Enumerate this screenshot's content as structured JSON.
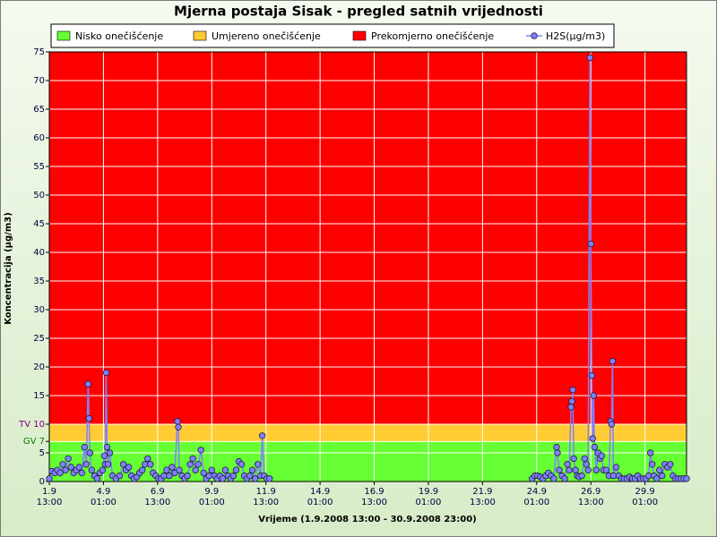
{
  "chart_data": {
    "type": "line",
    "title": "Mjerna postaja Sisak - pregled satnih vrijednosti",
    "x_label": "Vrijeme (1.9.2008 13:00 - 30.9.2008 23:00)",
    "y_label": "Koncentracija (µg/m3)",
    "xlim": [
      0,
      706
    ],
    "ylim": [
      0,
      75
    ],
    "xticks": [
      {
        "value": 0,
        "label": [
          "1.9",
          "13:00"
        ]
      },
      {
        "value": 60,
        "label": [
          "4.9",
          "01:00"
        ]
      },
      {
        "value": 120,
        "label": [
          "6.9",
          "13:00"
        ]
      },
      {
        "value": 180,
        "label": [
          "9.9",
          "01:00"
        ]
      },
      {
        "value": 240,
        "label": [
          "11.9",
          "13:00"
        ]
      },
      {
        "value": 300,
        "label": [
          "14.9",
          "01:00"
        ]
      },
      {
        "value": 360,
        "label": [
          "16.9",
          "13:00"
        ]
      },
      {
        "value": 420,
        "label": [
          "19.9",
          "01:00"
        ]
      },
      {
        "value": 480,
        "label": [
          "21.9",
          "13:00"
        ]
      },
      {
        "value": 540,
        "label": [
          "24.9",
          "01:00"
        ]
      },
      {
        "value": 600,
        "label": [
          "26.9",
          "13:00"
        ]
      },
      {
        "value": 660,
        "label": [
          "29.9",
          "01:00"
        ]
      }
    ],
    "yticks": [
      0,
      5,
      {
        "value": 7,
        "label": "GV 7",
        "color": "#008000"
      },
      {
        "value": 10,
        "label": "TV 10",
        "color": "#800080"
      },
      15,
      20,
      25,
      30,
      35,
      40,
      45,
      50,
      55,
      60,
      65,
      70,
      75
    ],
    "grid": true,
    "bands": [
      {
        "name": "Nisko onečišćenje",
        "from": 0,
        "to": 7,
        "color": "#66ff33"
      },
      {
        "name": "Umjereno onečišćenje",
        "from": 7,
        "to": 10,
        "color": "#ffcc33"
      },
      {
        "name": "Prekomjerno onečišćenje",
        "from": 10,
        "to": 75,
        "color": "#ff0000"
      }
    ],
    "series": [
      {
        "name": "H2S(µg/m3)",
        "color": "#8080ff",
        "x": [
          0,
          3,
          6,
          9,
          12,
          15,
          18,
          21,
          24,
          27,
          30,
          33,
          36,
          39,
          41,
          43,
          44,
          45,
          47,
          50,
          53,
          56,
          59,
          61,
          62,
          63,
          64,
          65,
          67,
          70,
          74,
          78,
          82,
          85,
          88,
          91,
          94,
          97,
          100,
          103,
          106,
          109,
          112,
          115,
          118,
          121,
          124,
          127,
          130,
          133,
          136,
          139,
          142,
          143,
          144,
          147,
          150,
          153,
          156,
          159,
          162,
          165,
          168,
          171,
          174,
          177,
          180,
          183,
          186,
          189,
          192,
          195,
          198,
          201,
          204,
          207,
          210,
          213,
          216,
          219,
          222,
          225,
          228,
          231,
          234,
          236,
          238,
          241,
          244,
          250,
          535,
          538,
          541,
          544,
          547,
          550,
          553,
          556,
          559,
          562,
          563,
          565,
          568,
          571,
          574,
          576,
          578,
          579,
          580,
          581,
          583,
          585,
          587,
          590,
          593,
          595,
          597,
          599,
          600,
          601,
          602,
          603,
          604,
          606,
          608,
          610,
          612,
          614,
          617,
          620,
          622,
          623,
          624,
          625,
          628,
          631,
          634,
          637,
          640,
          643,
          646,
          649,
          652,
          655,
          658,
          661,
          664,
          666,
          668,
          670,
          673,
          676,
          679,
          682,
          685,
          688,
          691,
          694,
          697,
          700,
          703,
          706
        ],
        "values": [
          0.5,
          1.8,
          1.5,
          2,
          1.5,
          3,
          2,
          4,
          2.5,
          1.5,
          2,
          2.5,
          1.5,
          6,
          3,
          17,
          11,
          5,
          2,
          1,
          0.5,
          1.5,
          2,
          4.5,
          3,
          19,
          6,
          3,
          5,
          1,
          0.5,
          1,
          3,
          2,
          2.5,
          1,
          0.5,
          0.8,
          1.5,
          2,
          3,
          4,
          3,
          1.5,
          1,
          0.5,
          0.5,
          1,
          2,
          1,
          2.5,
          1.5,
          10.5,
          9.5,
          2,
          1,
          0.5,
          1,
          3,
          4,
          2,
          3,
          5.5,
          1.5,
          0.5,
          1,
          2,
          1,
          0.5,
          1,
          0.5,
          2,
          1,
          0.5,
          1,
          2,
          3.5,
          3,
          1,
          0.5,
          1,
          2,
          0.5,
          3,
          1,
          8,
          1,
          0.5,
          0.5,
          null,
          0.5,
          1,
          1,
          0.8,
          0.5,
          1,
          1.5,
          1,
          0.5,
          6,
          5,
          2,
          1,
          0.5,
          3,
          2,
          13,
          14,
          16,
          4,
          2,
          1,
          0.8,
          1,
          4,
          3,
          2,
          74,
          41.5,
          18.5,
          7.5,
          15,
          6,
          2,
          5,
          4,
          4.5,
          2,
          2,
          1,
          10.5,
          10,
          21,
          1,
          2.5,
          1,
          0.5,
          0.5,
          0.5,
          0.8,
          0.5,
          0.5,
          1,
          0.5,
          0.5,
          0.5,
          1,
          5,
          3,
          1,
          0.5,
          2,
          1,
          3,
          2.5,
          3,
          1,
          0.5,
          0.5,
          0.5,
          0.5,
          0.5
        ]
      }
    ]
  }
}
